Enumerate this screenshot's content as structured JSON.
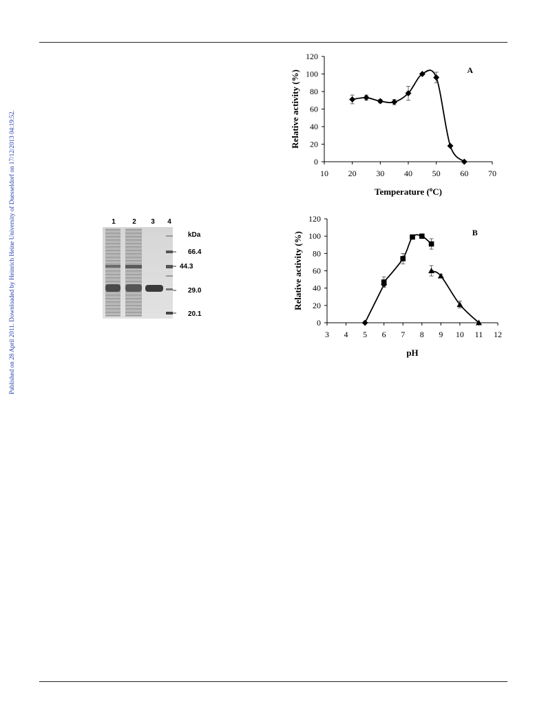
{
  "sidebar": {
    "text": "Published on 28 April 2011. Downloaded by Heinrich Heine University of Duesseldorf on 17/12/2013 04:19:52."
  },
  "gel": {
    "lanes": [
      "1",
      "2",
      "3",
      "4"
    ],
    "unit": "kDa",
    "markers": [
      "66.4",
      "44.3",
      "29.0",
      "20.1"
    ]
  },
  "chart_data": [
    {
      "type": "line",
      "panel_label": "A",
      "xlabel": "Temperature (°C)",
      "ylabel": "Relative activity (%)",
      "xlim": [
        10,
        70
      ],
      "ylim": [
        0,
        120
      ],
      "x_ticks": [
        "10",
        "20",
        "30",
        "40",
        "50",
        "60",
        "70"
      ],
      "y_ticks": [
        "0",
        "20",
        "40",
        "60",
        "80",
        "100",
        "120"
      ],
      "grid": false,
      "series": [
        {
          "marker": "diamond",
          "x": [
            20,
            25,
            30,
            35,
            40,
            45,
            50,
            55,
            60
          ],
          "y": [
            71,
            73,
            69,
            68,
            78,
            100,
            96,
            18,
            0
          ],
          "err": [
            5,
            3,
            2,
            3,
            8,
            0,
            6,
            0,
            0
          ]
        }
      ]
    },
    {
      "type": "line",
      "panel_label": "B",
      "xlabel": "pH",
      "ylabel": "Relative activity (%)",
      "xlim": [
        3,
        12
      ],
      "ylim": [
        0,
        120
      ],
      "x_ticks": [
        "3",
        "4",
        "5",
        "6",
        "7",
        "8",
        "9",
        "10",
        "11",
        "12"
      ],
      "y_ticks": [
        "0",
        "20",
        "40",
        "60",
        "80",
        "100",
        "120"
      ],
      "grid": false,
      "series": [
        {
          "marker": "diamond",
          "x": [
            5,
            6
          ],
          "y": [
            0,
            44
          ],
          "err": [
            0,
            0
          ]
        },
        {
          "marker": "square",
          "x": [
            6,
            7,
            7.5,
            8,
            8.5
          ],
          "y": [
            47,
            74,
            99,
            100,
            91
          ],
          "err": [
            6,
            6,
            0,
            2,
            6
          ]
        },
        {
          "marker": "triangle",
          "x": [
            8.5,
            9,
            10,
            11
          ],
          "y": [
            60,
            54,
            21,
            0
          ],
          "err": [
            6,
            2,
            4,
            0
          ]
        }
      ]
    }
  ]
}
